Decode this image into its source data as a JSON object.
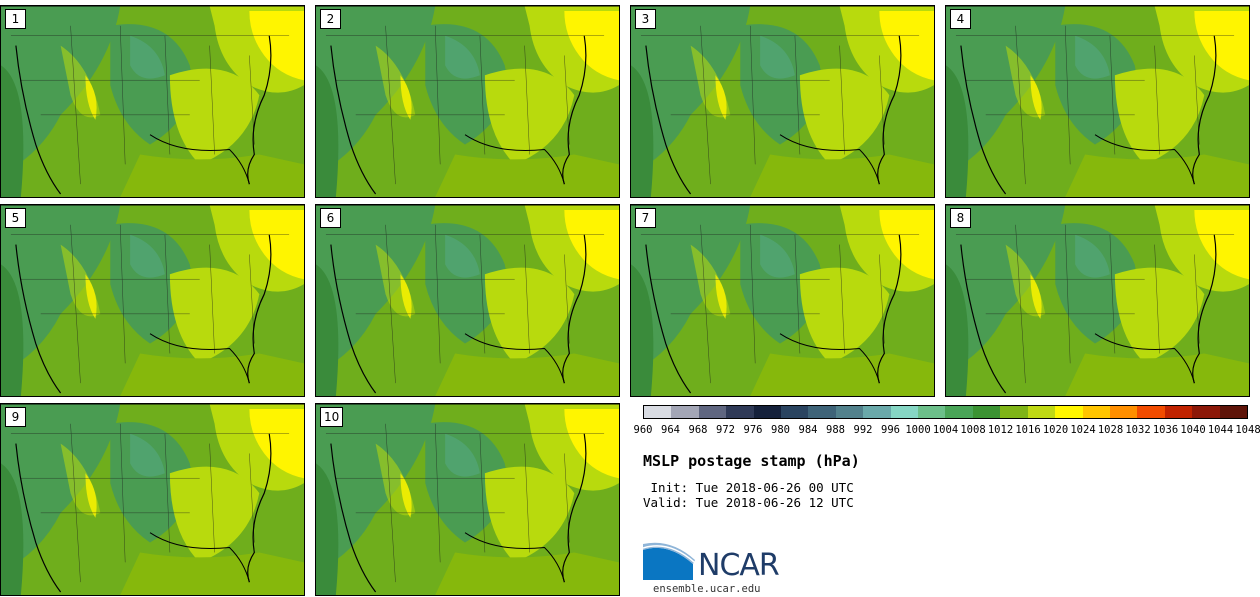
{
  "panels": [
    {
      "label": "1"
    },
    {
      "label": "2"
    },
    {
      "label": "3"
    },
    {
      "label": "4"
    },
    {
      "label": "5"
    },
    {
      "label": "6"
    },
    {
      "label": "7"
    },
    {
      "label": "8"
    },
    {
      "label": "9"
    },
    {
      "label": "10"
    }
  ],
  "colorbar": {
    "ticks": [
      "960",
      "964",
      "968",
      "972",
      "976",
      "980",
      "984",
      "988",
      "992",
      "996",
      "1000",
      "1004",
      "1008",
      "1012",
      "1016",
      "1020",
      "1024",
      "1028",
      "1032",
      "1036",
      "1040",
      "1044",
      "1048"
    ],
    "colors": [
      "#d9dce3",
      "#a3a6b6",
      "#5f6680",
      "#2f3a57",
      "#15213b",
      "#2a4460",
      "#3e6378",
      "#52818c",
      "#6aa9aa",
      "#86d6c4",
      "#6cbf8a",
      "#49a457",
      "#3b9332",
      "#7fb417",
      "#bfd914",
      "#fff600",
      "#ffc500",
      "#ff8f00",
      "#f24c00",
      "#c12300",
      "#8c1808",
      "#5e1409"
    ]
  },
  "field_colors": {
    "ocean": "#3a8b3b",
    "gulf": "#86b80c",
    "low": "#4a9c52",
    "mid": "#6fae1c",
    "high": "#b8da0d",
    "very_high": "#fff500",
    "teal": "#55a982"
  },
  "title": "MSLP postage stamp (hPa)",
  "init": " Init: Tue 2018-06-26 00 UTC",
  "valid": "Valid: Tue 2018-06-26 12 UTC",
  "logo_text": "NCAR",
  "url": "ensemble.ucar.edu"
}
